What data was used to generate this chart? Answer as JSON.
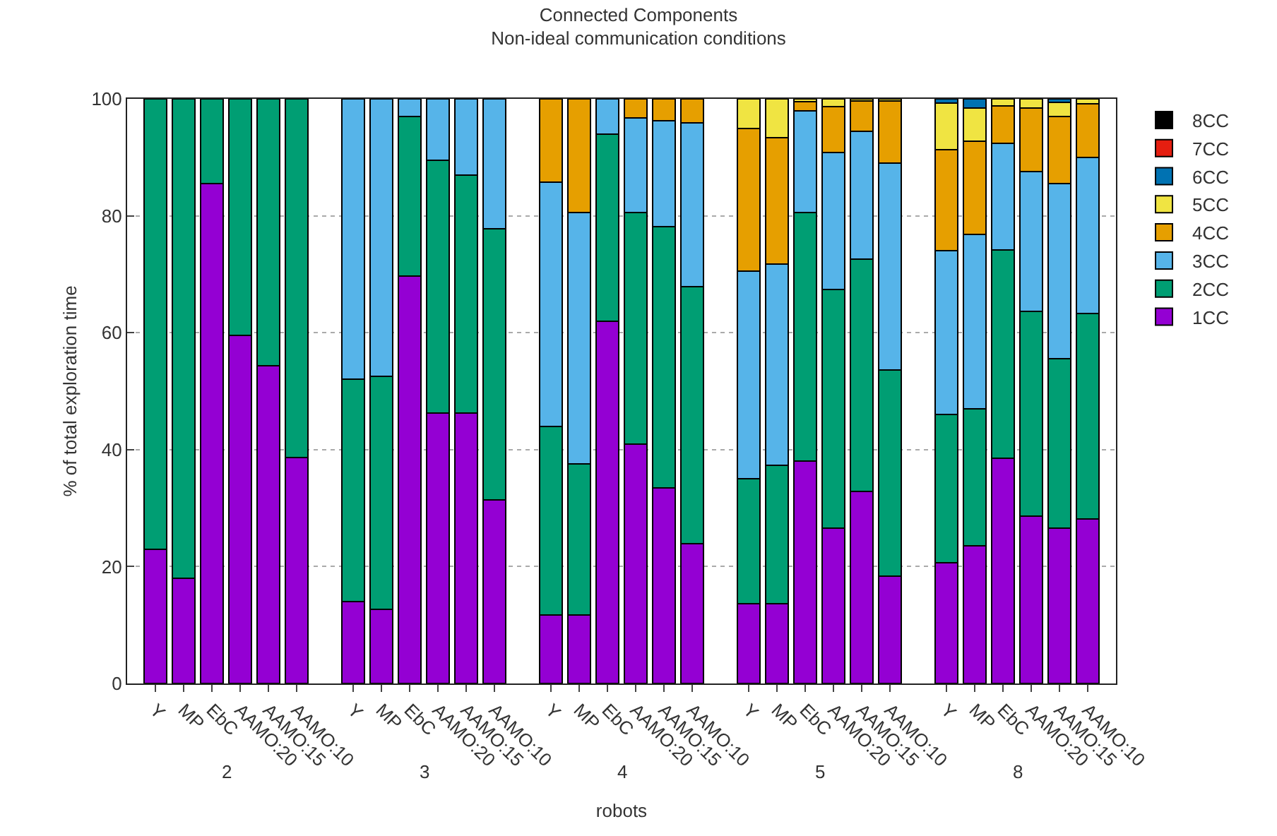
{
  "chart_data": {
    "type": "bar",
    "title": "Connected Components",
    "subtitle": "Non-ideal communication conditions",
    "xlabel": "robots",
    "ylabel": "% of total exploration time",
    "categories": [
      "Y",
      "MP",
      "EbC",
      "AAMO:20",
      "AAMO:15",
      "AAMO:10",
      null,
      "Y",
      "MP",
      "EbC",
      "AAMO:20",
      "AAMO:15",
      "AAMO:10",
      null,
      "Y",
      "MP",
      "EbC",
      "AAMO:20",
      "AAMO:15",
      "AAMO:10",
      null,
      "Y",
      "MP",
      "EbC",
      "AAMO:20",
      "AAMO:15",
      "AAMO:10",
      null,
      "Y",
      "MP",
      "EbC",
      "AAMO:20",
      "AAMO:15",
      "AAMO:10"
    ],
    "stacked": true,
    "ylim": [
      0,
      100
    ],
    "yticks": [
      0,
      20,
      40,
      60,
      80,
      100
    ],
    "grid": "y",
    "legend": "top right",
    "annotations": [
      "2",
      "3",
      "4",
      "5",
      "8"
    ],
    "series": [
      {
        "name": "1CC",
        "color": "#9400d3",
        "values": [
          23,
          18,
          85.5,
          59.5,
          54.3,
          38.7,
          null,
          14,
          12.7,
          69.7,
          46.2,
          46.2,
          31.4,
          null,
          11.7,
          11.7,
          61.9,
          41,
          33.5,
          23.9,
          null,
          13.6,
          13.6,
          38,
          26.6,
          32.9,
          18.4,
          null,
          20.6,
          23.6,
          38.5,
          28.6,
          26.6,
          28.2
        ]
      },
      {
        "name": "2CC",
        "color": "#009e73",
        "values": [
          77,
          82,
          14.5,
          40.5,
          45.7,
          61.3,
          null,
          38,
          39.8,
          27.3,
          43.3,
          40.8,
          46.4,
          null,
          32.3,
          25.9,
          32.1,
          39.5,
          44.7,
          44,
          null,
          21.4,
          23.7,
          42.6,
          40.8,
          39.7,
          35.2,
          null,
          25.4,
          23.4,
          35.7,
          35,
          28.9,
          35.1
        ]
      },
      {
        "name": "3CC",
        "color": "#56b4e9",
        "values": [
          null,
          null,
          null,
          null,
          null,
          null,
          null,
          48,
          47.5,
          3,
          10.5,
          13,
          22.2,
          null,
          41.8,
          43,
          6,
          16.3,
          18,
          28,
          null,
          35.5,
          34.4,
          17.3,
          23.4,
          21.8,
          35.4,
          null,
          28,
          29.8,
          18.2,
          24,
          30,
          26.7
        ]
      },
      {
        "name": "4CC",
        "color": "#e69f00",
        "values": [
          null,
          null,
          null,
          null,
          null,
          null,
          null,
          null,
          null,
          null,
          null,
          null,
          null,
          null,
          14.2,
          19.4,
          null,
          3.2,
          3.8,
          4.1,
          null,
          24.4,
          21.6,
          1.6,
          7.9,
          5.2,
          10.6,
          null,
          17.3,
          15.9,
          6.4,
          10.8,
          11.5,
          9.1
        ]
      },
      {
        "name": "5CC",
        "color": "#f0e442",
        "values": [
          null,
          null,
          null,
          null,
          null,
          null,
          null,
          null,
          null,
          null,
          null,
          null,
          null,
          null,
          null,
          null,
          null,
          null,
          null,
          null,
          null,
          5.1,
          6.7,
          0.5,
          1.3,
          0.4,
          0.4,
          null,
          8,
          5.7,
          1.2,
          1.6,
          2.4,
          0.9
        ]
      },
      {
        "name": "6CC",
        "color": "#0072b2",
        "values": [
          null,
          null,
          null,
          null,
          null,
          null,
          null,
          null,
          null,
          null,
          null,
          null,
          null,
          null,
          null,
          null,
          null,
          null,
          null,
          null,
          null,
          null,
          null,
          null,
          null,
          null,
          null,
          null,
          0.7,
          1.6,
          null,
          null,
          0.6,
          null
        ]
      },
      {
        "name": "7CC",
        "color": "#e51e10",
        "values": [
          null,
          null,
          null,
          null,
          null,
          null,
          null,
          null,
          null,
          null,
          null,
          null,
          null,
          null,
          null,
          null,
          null,
          null,
          null,
          null,
          null,
          null,
          null,
          null,
          null,
          null,
          null,
          null,
          null,
          null,
          null,
          null,
          null,
          null
        ]
      },
      {
        "name": "8CC",
        "color": "#000000",
        "values": [
          null,
          null,
          null,
          null,
          null,
          null,
          null,
          null,
          null,
          null,
          null,
          null,
          null,
          null,
          null,
          null,
          null,
          null,
          null,
          null,
          null,
          null,
          null,
          null,
          null,
          null,
          null,
          null,
          null,
          null,
          null,
          null,
          null,
          null
        ]
      }
    ]
  }
}
